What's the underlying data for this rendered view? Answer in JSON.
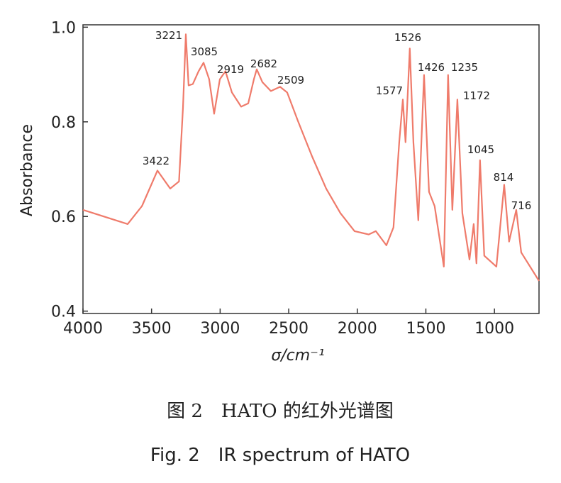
{
  "chart_data": {
    "type": "line",
    "ylabel": "Absorbance",
    "xlabel": "σ/cm⁻¹",
    "caption_cn": "图 2　HATO 的红外光谱图",
    "caption_en": "Fig. 2　IR spectrum of HATO",
    "xlim": [
      4000,
      675
    ],
    "xticks": [
      4000,
      3500,
      3000,
      2500,
      2000,
      1500,
      1000
    ],
    "ylim": [
      0.395,
      1.005
    ],
    "yticks": [
      {
        "value": 1.0,
        "label": "1.0"
      },
      0.8,
      0.6,
      0.4
    ],
    "x": [
      4000,
      3674,
      3570,
      3457,
      3364,
      3300,
      3271,
      3250,
      3230,
      3199,
      3157,
      3121,
      3080,
      3044,
      3002,
      2961,
      2914,
      2847,
      2795,
      2754,
      2733,
      2692,
      2630,
      2563,
      2511,
      2433,
      2330,
      2227,
      2123,
      2020,
      1917,
      1865,
      1788,
      1736,
      1694,
      1668,
      1648,
      1617,
      1591,
      1555,
      1513,
      1477,
      1436,
      1369,
      1338,
      1307,
      1270,
      1234,
      1182,
      1151,
      1131,
      1105,
      1074,
      986,
      929,
      893,
      841,
      805,
      675
    ],
    "series": [
      {
        "name": "HATO",
        "color": "#ef7b6b",
        "values": [
          0.614,
          0.584,
          0.622,
          0.697,
          0.659,
          0.674,
          0.83,
          0.985,
          0.877,
          0.88,
          0.907,
          0.925,
          0.89,
          0.817,
          0.89,
          0.907,
          0.862,
          0.832,
          0.839,
          0.89,
          0.911,
          0.884,
          0.865,
          0.874,
          0.862,
          0.802,
          0.727,
          0.659,
          0.607,
          0.569,
          0.562,
          0.569,
          0.539,
          0.577,
          0.757,
          0.847,
          0.757,
          0.955,
          0.757,
          0.592,
          0.899,
          0.652,
          0.622,
          0.494,
          0.899,
          0.614,
          0.847,
          0.607,
          0.509,
          0.584,
          0.501,
          0.719,
          0.517,
          0.494,
          0.667,
          0.547,
          0.614,
          0.524,
          0.464
        ]
      }
    ],
    "annotations": [
      "3221",
      "3085",
      "2919",
      "2682",
      "2509",
      "3422",
      "1526",
      "1426",
      "1235",
      "1577",
      "1172",
      "1045",
      "814",
      "716"
    ]
  }
}
